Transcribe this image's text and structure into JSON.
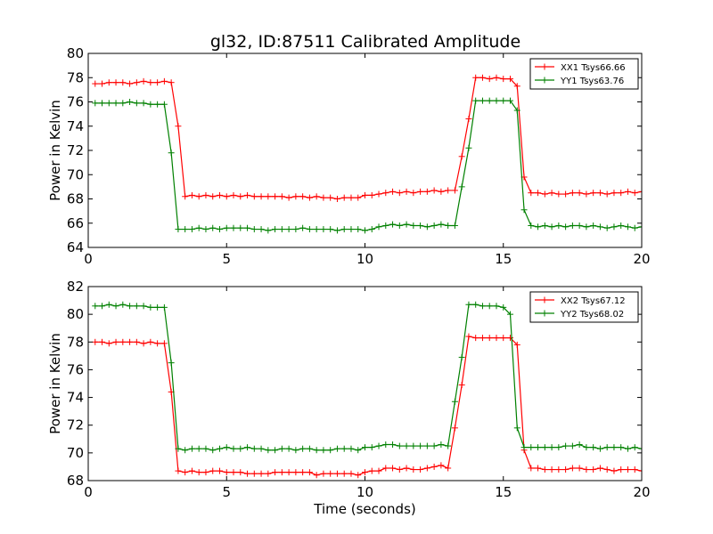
{
  "figure_title": "gl32, ID:87511 Calibrated Amplitude",
  "colors": {
    "XX": "#ff0000",
    "YY": "#008000"
  },
  "chart_data": [
    {
      "type": "line",
      "xlabel": "",
      "ylabel": "Power in Kelvin",
      "xlim": [
        0,
        20
      ],
      "ylim": [
        64,
        80
      ],
      "xticks": [
        0,
        5,
        10,
        15,
        20
      ],
      "yticks": [
        64,
        66,
        68,
        70,
        72,
        74,
        76,
        78,
        80
      ],
      "legend_position": "upper right",
      "x": [
        0.25,
        0.5,
        0.75,
        1.0,
        1.25,
        1.5,
        1.75,
        2.0,
        2.25,
        2.5,
        2.75,
        3.0,
        3.25,
        3.5,
        3.75,
        4.0,
        4.25,
        4.5,
        4.75,
        5.0,
        5.25,
        5.5,
        5.75,
        6.0,
        6.25,
        6.5,
        6.75,
        7.0,
        7.25,
        7.5,
        7.75,
        8.0,
        8.25,
        8.5,
        8.75,
        9.0,
        9.25,
        9.5,
        9.75,
        10.0,
        10.25,
        10.5,
        10.75,
        11.0,
        11.25,
        11.5,
        11.75,
        12.0,
        12.25,
        12.5,
        12.75,
        13.0,
        13.25,
        13.5,
        13.75,
        14.0,
        14.25,
        14.5,
        14.75,
        15.0,
        15.25,
        15.5,
        15.75,
        16.0,
        16.25,
        16.5,
        16.75,
        17.0,
        17.25,
        17.5,
        17.75,
        18.0,
        18.25,
        18.5,
        18.75,
        19.0,
        19.25,
        19.5,
        19.75,
        20.0
      ],
      "series": [
        {
          "name": "XX1 Tsys66.66",
          "color": "#ff0000",
          "values": [
            77.5,
            77.5,
            77.6,
            77.6,
            77.6,
            77.5,
            77.6,
            77.7,
            77.6,
            77.6,
            77.7,
            77.6,
            74.0,
            68.2,
            68.3,
            68.2,
            68.3,
            68.2,
            68.3,
            68.2,
            68.3,
            68.2,
            68.3,
            68.2,
            68.2,
            68.2,
            68.2,
            68.2,
            68.1,
            68.2,
            68.2,
            68.1,
            68.2,
            68.1,
            68.1,
            68.0,
            68.1,
            68.1,
            68.1,
            68.3,
            68.3,
            68.4,
            68.5,
            68.6,
            68.5,
            68.6,
            68.5,
            68.6,
            68.6,
            68.7,
            68.6,
            68.7,
            68.7,
            71.5,
            74.6,
            78.0,
            78.0,
            77.9,
            78.0,
            77.9,
            77.9,
            77.3,
            69.8,
            68.5,
            68.5,
            68.4,
            68.5,
            68.4,
            68.4,
            68.5,
            68.5,
            68.4,
            68.5,
            68.5,
            68.4,
            68.5,
            68.5,
            68.6,
            68.5,
            68.6
          ]
        },
        {
          "name": "YY1 Tsys63.76",
          "color": "#008000",
          "values": [
            75.9,
            75.9,
            75.9,
            75.9,
            75.9,
            76.0,
            75.9,
            75.9,
            75.8,
            75.8,
            75.8,
            71.8,
            65.5,
            65.5,
            65.5,
            65.6,
            65.5,
            65.6,
            65.5,
            65.6,
            65.6,
            65.6,
            65.6,
            65.5,
            65.5,
            65.4,
            65.5,
            65.5,
            65.5,
            65.5,
            65.6,
            65.5,
            65.5,
            65.5,
            65.5,
            65.4,
            65.5,
            65.5,
            65.5,
            65.4,
            65.5,
            65.7,
            65.8,
            65.9,
            65.8,
            65.9,
            65.8,
            65.8,
            65.7,
            65.8,
            65.9,
            65.8,
            65.8,
            69.0,
            72.2,
            76.1,
            76.1,
            76.1,
            76.1,
            76.1,
            76.1,
            75.3,
            67.1,
            65.8,
            65.7,
            65.8,
            65.7,
            65.8,
            65.7,
            65.8,
            65.8,
            65.7,
            65.8,
            65.7,
            65.6,
            65.7,
            65.8,
            65.7,
            65.6,
            65.7
          ]
        }
      ]
    },
    {
      "type": "line",
      "xlabel": "Time (seconds)",
      "ylabel": "Power in Kelvin",
      "xlim": [
        0,
        20
      ],
      "ylim": [
        68,
        82
      ],
      "xticks": [
        0,
        5,
        10,
        15,
        20
      ],
      "yticks": [
        68,
        70,
        72,
        74,
        76,
        78,
        80,
        82
      ],
      "legend_position": "upper right",
      "x": [
        0.25,
        0.5,
        0.75,
        1.0,
        1.25,
        1.5,
        1.75,
        2.0,
        2.25,
        2.5,
        2.75,
        3.0,
        3.25,
        3.5,
        3.75,
        4.0,
        4.25,
        4.5,
        4.75,
        5.0,
        5.25,
        5.5,
        5.75,
        6.0,
        6.25,
        6.5,
        6.75,
        7.0,
        7.25,
        7.5,
        7.75,
        8.0,
        8.25,
        8.5,
        8.75,
        9.0,
        9.25,
        9.5,
        9.75,
        10.0,
        10.25,
        10.5,
        10.75,
        11.0,
        11.25,
        11.5,
        11.75,
        12.0,
        12.25,
        12.5,
        12.75,
        13.0,
        13.25,
        13.5,
        13.75,
        14.0,
        14.25,
        14.5,
        14.75,
        15.0,
        15.25,
        15.5,
        15.75,
        16.0,
        16.25,
        16.5,
        16.75,
        17.0,
        17.25,
        17.5,
        17.75,
        18.0,
        18.25,
        18.5,
        18.75,
        19.0,
        19.25,
        19.5,
        19.75,
        20.0
      ],
      "series": [
        {
          "name": "XX2 Tsys67.12",
          "color": "#ff0000",
          "values": [
            78.0,
            78.0,
            77.9,
            78.0,
            78.0,
            78.0,
            78.0,
            77.9,
            78.0,
            77.9,
            77.9,
            74.4,
            68.7,
            68.6,
            68.7,
            68.6,
            68.6,
            68.7,
            68.7,
            68.6,
            68.6,
            68.6,
            68.5,
            68.5,
            68.5,
            68.5,
            68.6,
            68.6,
            68.6,
            68.6,
            68.6,
            68.6,
            68.4,
            68.5,
            68.5,
            68.5,
            68.5,
            68.5,
            68.4,
            68.6,
            68.7,
            68.7,
            68.9,
            68.9,
            68.8,
            68.9,
            68.8,
            68.8,
            68.9,
            69.0,
            69.1,
            68.9,
            71.8,
            74.9,
            78.4,
            78.3,
            78.3,
            78.3,
            78.3,
            78.3,
            78.3,
            77.8,
            70.2,
            68.9,
            68.9,
            68.8,
            68.8,
            68.8,
            68.8,
            68.9,
            68.9,
            68.8,
            68.8,
            68.9,
            68.8,
            68.7,
            68.8,
            68.8,
            68.8,
            68.7
          ]
        },
        {
          "name": "YY2 Tsys68.02",
          "color": "#008000",
          "values": [
            80.6,
            80.6,
            80.7,
            80.6,
            80.7,
            80.6,
            80.6,
            80.6,
            80.5,
            80.5,
            80.5,
            76.5,
            70.3,
            70.2,
            70.3,
            70.3,
            70.3,
            70.2,
            70.3,
            70.4,
            70.3,
            70.3,
            70.4,
            70.3,
            70.3,
            70.2,
            70.2,
            70.3,
            70.3,
            70.2,
            70.3,
            70.3,
            70.2,
            70.2,
            70.2,
            70.3,
            70.3,
            70.3,
            70.2,
            70.4,
            70.4,
            70.5,
            70.6,
            70.6,
            70.5,
            70.5,
            70.5,
            70.5,
            70.5,
            70.5,
            70.6,
            70.5,
            73.7,
            76.9,
            80.7,
            80.7,
            80.6,
            80.6,
            80.6,
            80.5,
            80.0,
            71.8,
            70.4,
            70.4,
            70.4,
            70.4,
            70.4,
            70.4,
            70.5,
            70.5,
            70.6,
            70.4,
            70.4,
            70.3,
            70.4,
            70.4,
            70.4,
            70.3,
            70.4,
            70.3
          ]
        }
      ]
    }
  ]
}
